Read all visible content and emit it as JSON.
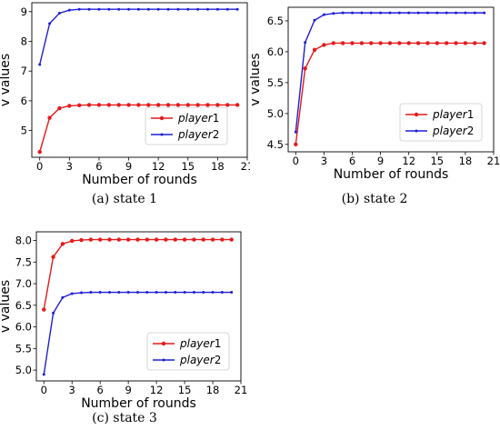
{
  "chart_data": [
    {
      "type": "line",
      "caption": "(a)  state 1",
      "xlabel": "Number of rounds",
      "ylabel": "v values",
      "xlim": [
        -0.8,
        21
      ],
      "ylim": [
        4.1,
        9.3
      ],
      "xticks": [
        0,
        3,
        6,
        9,
        12,
        15,
        18,
        21
      ],
      "yticks": [
        5,
        6,
        7,
        8,
        9
      ],
      "grid": false,
      "legend_position": "lower-right",
      "x": [
        0,
        1,
        2,
        3,
        4,
        5,
        6,
        7,
        8,
        9,
        10,
        11,
        12,
        13,
        14,
        15,
        16,
        17,
        18,
        19,
        20
      ],
      "series": [
        {
          "name": "player1",
          "label_italic": "player",
          "label_num": "1",
          "color": "#e41a1c",
          "marker": "circle",
          "values": [
            4.28,
            5.43,
            5.75,
            5.83,
            5.85,
            5.86,
            5.86,
            5.86,
            5.86,
            5.86,
            5.86,
            5.86,
            5.86,
            5.86,
            5.86,
            5.86,
            5.86,
            5.86,
            5.86,
            5.86,
            5.86
          ]
        },
        {
          "name": "player2",
          "label_italic": "player",
          "label_num": "2",
          "color": "#1f1fd6",
          "marker": "dot",
          "values": [
            7.22,
            8.6,
            8.95,
            9.05,
            9.08,
            9.08,
            9.08,
            9.08,
            9.08,
            9.08,
            9.08,
            9.08,
            9.08,
            9.08,
            9.08,
            9.08,
            9.08,
            9.08,
            9.08,
            9.08,
            9.08
          ]
        }
      ]
    },
    {
      "type": "line",
      "caption": "(b)  state 2",
      "xlabel": "Number of rounds",
      "ylabel": "v values",
      "xlim": [
        -0.8,
        21
      ],
      "ylim": [
        4.38,
        6.72
      ],
      "xticks": [
        0,
        3,
        6,
        9,
        12,
        15,
        18,
        21
      ],
      "yticks": [
        4.5,
        5.0,
        5.5,
        6.0,
        6.5
      ],
      "ytick_decimals": 1,
      "grid": false,
      "legend_position": "lower-right",
      "x": [
        0,
        1,
        2,
        3,
        4,
        5,
        6,
        7,
        8,
        9,
        10,
        11,
        12,
        13,
        14,
        15,
        16,
        17,
        18,
        19,
        20
      ],
      "series": [
        {
          "name": "player1",
          "label_italic": "player",
          "label_num": "1",
          "color": "#e41a1c",
          "marker": "circle",
          "values": [
            4.5,
            5.73,
            6.03,
            6.11,
            6.14,
            6.14,
            6.14,
            6.14,
            6.14,
            6.14,
            6.14,
            6.14,
            6.14,
            6.14,
            6.14,
            6.14,
            6.14,
            6.14,
            6.14,
            6.14,
            6.14
          ]
        },
        {
          "name": "player2",
          "label_italic": "player",
          "label_num": "2",
          "color": "#1f1fd6",
          "marker": "dot",
          "values": [
            4.7,
            6.15,
            6.51,
            6.6,
            6.62,
            6.63,
            6.63,
            6.63,
            6.63,
            6.63,
            6.63,
            6.63,
            6.63,
            6.63,
            6.63,
            6.63,
            6.63,
            6.63,
            6.63,
            6.63,
            6.63
          ]
        }
      ]
    },
    {
      "type": "line",
      "caption": "(c)  state 3",
      "xlabel": "Number of rounds",
      "ylabel": "v values",
      "xlim": [
        -0.8,
        21
      ],
      "ylim": [
        4.75,
        8.2
      ],
      "xticks": [
        0,
        3,
        6,
        9,
        12,
        15,
        18,
        21
      ],
      "yticks": [
        5.0,
        5.5,
        6.0,
        6.5,
        7.0,
        7.5,
        8.0
      ],
      "ytick_decimals": 1,
      "grid": false,
      "legend_position": "lower-right",
      "x": [
        0,
        1,
        2,
        3,
        4,
        5,
        6,
        7,
        8,
        9,
        10,
        11,
        12,
        13,
        14,
        15,
        16,
        17,
        18,
        19,
        20
      ],
      "series": [
        {
          "name": "player1",
          "label_italic": "player",
          "label_num": "1",
          "color": "#e41a1c",
          "marker": "circle",
          "values": [
            6.4,
            7.62,
            7.92,
            7.99,
            8.01,
            8.02,
            8.02,
            8.02,
            8.02,
            8.02,
            8.02,
            8.02,
            8.02,
            8.02,
            8.02,
            8.02,
            8.02,
            8.02,
            8.02,
            8.02,
            8.02
          ]
        },
        {
          "name": "player2",
          "label_italic": "player",
          "label_num": "2",
          "color": "#1f1fd6",
          "marker": "dot",
          "values": [
            4.9,
            6.32,
            6.68,
            6.77,
            6.79,
            6.8,
            6.8,
            6.8,
            6.8,
            6.8,
            6.8,
            6.8,
            6.8,
            6.8,
            6.8,
            6.8,
            6.8,
            6.8,
            6.8,
            6.8,
            6.8
          ]
        }
      ]
    }
  ]
}
